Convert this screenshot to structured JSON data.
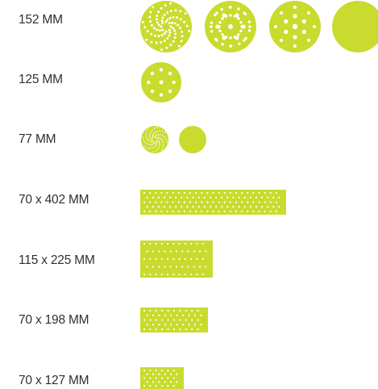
{
  "accent_color": "#c9db2f",
  "hole_color": "#ffffff",
  "rows": [
    {
      "label": "152 MM",
      "items": [
        "spiral-disc",
        "multi-hole-disc",
        "15-hole-disc",
        "plain-disc"
      ]
    },
    {
      "label": "125 MM",
      "items": [
        "8-hole-disc"
      ]
    },
    {
      "label": "77 MM",
      "items": [
        "spiral-disc",
        "plain-disc"
      ]
    },
    {
      "label": "70 x 402 MM",
      "items": [
        "multi-hole-strip"
      ]
    },
    {
      "label": "115 x 225 MM",
      "items": [
        "multi-hole-sheet"
      ]
    },
    {
      "label": "70 x 198 MM",
      "items": [
        "multi-hole-strip"
      ]
    },
    {
      "label": "70 x 127 MM",
      "items": [
        "multi-hole-strip"
      ]
    }
  ]
}
